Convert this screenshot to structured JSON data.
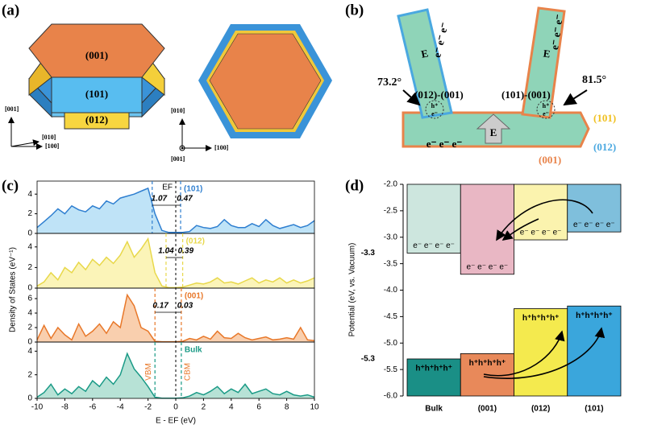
{
  "panel_labels": [
    "(a)",
    "(b)",
    "(c)",
    "(d)"
  ],
  "panel_a": {
    "facets": [
      "(001)",
      "(101)",
      "(012)"
    ],
    "axes_left": [
      "[001]",
      "[010]",
      "[100]"
    ],
    "axes_right": [
      "[010]",
      "[001]",
      "[100]"
    ]
  },
  "panel_b": {
    "angles": [
      "73.2°",
      "81.5°"
    ],
    "interfaces": [
      "(012)-(001)",
      "(101)-(001)"
    ],
    "facets": [
      "(101)",
      "(012)",
      "(001)"
    ],
    "field": "E",
    "electrons": [
      "e⁻ e⁻ e⁻",
      "e⁻ e⁻ e⁻",
      "e⁻ e⁻ e⁻"
    ],
    "pair": [
      "h⁺",
      "e⁻"
    ]
  },
  "chart_data": [
    {
      "type": "dos",
      "xlabel": "E - EF (eV)",
      "ylabel": "Density of States (eV⁻¹)",
      "ef": 0,
      "ef_label": "EF",
      "xlim": [
        -10,
        10
      ],
      "xticks": [
        -10,
        -8,
        -6,
        -4,
        -2,
        0,
        2,
        4,
        6,
        8,
        10
      ],
      "x": [
        -10,
        -9.5,
        -9,
        -8.5,
        -8,
        -7.5,
        -7,
        -6.5,
        -6,
        -5.5,
        -5,
        -4.5,
        -4,
        -3.5,
        -3,
        -2.5,
        -2,
        -1.5,
        -1,
        -0.5,
        0,
        0.5,
        1,
        1.5,
        2,
        2.5,
        3,
        3.5,
        4,
        4.5,
        5,
        5.5,
        6,
        6.5,
        7,
        7.5,
        8,
        8.5,
        9,
        9.5,
        10
      ],
      "series": [
        {
          "name": "(101)",
          "color": "#2f7fd0",
          "fill": "#bfe3f7",
          "ylim": [
            0,
            5
          ],
          "yticks": [
            0,
            2,
            4
          ],
          "vbm": -1.7,
          "cbm": 0.35,
          "gap_labels": [
            1.07,
            0.47
          ],
          "values": [
            0.6,
            1.2,
            1.8,
            2.5,
            2.0,
            2.8,
            2.4,
            2.2,
            2.8,
            2.5,
            3.3,
            3.0,
            3.6,
            3.8,
            4.0,
            4.3,
            4.6,
            2.0,
            0.3,
            0.1,
            0.1,
            0.1,
            0.2,
            0.8,
            0.6,
            0.5,
            0.7,
            1.4,
            0.8,
            0.6,
            0.6,
            1.0,
            0.7,
            1.4,
            0.8,
            0.5,
            0.7,
            0.9,
            0.6,
            0.8,
            1.3
          ]
        },
        {
          "name": "(012)",
          "color": "#e8d84a",
          "fill": "#fbf4b8",
          "ylim": [
            0,
            5
          ],
          "yticks": [
            0,
            2,
            4
          ],
          "vbm": -0.7,
          "cbm": 0.5,
          "gap_labels": [
            1.04,
            0.39
          ],
          "values": [
            0.2,
            0.6,
            1.5,
            0.8,
            2.0,
            1.5,
            2.5,
            1.8,
            2.8,
            2.2,
            3.0,
            2.4,
            3.2,
            4.5,
            3.0,
            3.8,
            4.8,
            1.5,
            0.2,
            0.05,
            0.05,
            0.1,
            0.3,
            0.5,
            0.4,
            0.6,
            1.0,
            0.5,
            0.6,
            0.4,
            0.7,
            1.0,
            0.5,
            0.8,
            0.6,
            1.0,
            0.5,
            0.8,
            0.5,
            0.7,
            1.0
          ]
        },
        {
          "name": "(001)",
          "color": "#e8782a",
          "fill": "#f9cfae",
          "ylim": [
            0,
            7
          ],
          "yticks": [
            0,
            2,
            4,
            6
          ],
          "vbm": -1.5,
          "cbm": 0.4,
          "gap_labels": [
            0.17,
            0.03
          ],
          "values": [
            0.3,
            2.3,
            0.5,
            2.0,
            1.0,
            0.3,
            2.5,
            0.8,
            1.5,
            2.5,
            1.2,
            2.8,
            2.0,
            6.5,
            5.0,
            2.0,
            1.5,
            0.1,
            0.05,
            0.05,
            0.05,
            0.1,
            0.5,
            0.3,
            0.8,
            0.4,
            1.5,
            0.6,
            0.5,
            1.2,
            0.6,
            0.3,
            0.5,
            0.7,
            0.3,
            0.4,
            0.6,
            0.4,
            2.0,
            0.3,
            0.2
          ]
        },
        {
          "name": "Bulk",
          "color": "#1a9a86",
          "fill": "#b7e2d6",
          "ylim": [
            0,
            4.5
          ],
          "yticks": [
            0,
            2,
            4
          ],
          "vbm": -1.5,
          "cbm": 0.4,
          "values": [
            0.1,
            0.5,
            1.2,
            0.3,
            0.8,
            0.4,
            1.0,
            0.6,
            1.5,
            1.0,
            1.8,
            1.2,
            2.0,
            3.8,
            2.5,
            1.8,
            1.0,
            0.1,
            0.02,
            0.02,
            0.02,
            0.05,
            0.2,
            0.5,
            0.3,
            0.6,
            1.0,
            0.4,
            0.8,
            0.5,
            1.2,
            0.4,
            0.6,
            0.8,
            0.4,
            0.3,
            0.6,
            0.3,
            0.2,
            0.3,
            0.1
          ]
        }
      ],
      "annotations": [
        {
          "text": "VBM",
          "x": -1.5,
          "color": "#e8782a"
        },
        {
          "text": "CBM",
          "x": 0.4,
          "color": "#e8782a"
        }
      ]
    },
    {
      "type": "band",
      "ylabel": "Potential (eV, vs. Vacuum)",
      "categories": [
        "Bulk",
        "(001)",
        "(012)",
        "(101)"
      ],
      "cb_bottom": [
        -3.3,
        -3.7,
        -3.05,
        -2.9
      ],
      "vb_top": [
        -5.3,
        -5.2,
        -4.35,
        -4.3
      ],
      "cb_colors": [
        "#cde6de",
        "#e9b7c4",
        "#fbf3ae",
        "#7fbfdc"
      ],
      "vb_colors": [
        "#1a8f86",
        "#e8895a",
        "#f4ea4e",
        "#3aa6dc"
      ],
      "ylim": [
        -6,
        -2
      ],
      "yticks": [
        {
          "value": -2,
          "label": "-2.0"
        },
        {
          "value": -2.5,
          "label": "-2.5"
        },
        {
          "value": -3,
          "label": "-3.0"
        },
        {
          "value": -3.5,
          "label": "-3.5"
        },
        {
          "value": -4,
          "label": "-4.0"
        },
        {
          "value": -4.5,
          "label": "-4.5"
        },
        {
          "value": -5,
          "label": "-5.0"
        },
        {
          "value": -5.5,
          "label": "-5.5"
        },
        {
          "value": -6,
          "label": "-6.0"
        }
      ],
      "level_labels": [
        -3.3,
        -5.3
      ],
      "electrons": [
        "e⁻ e⁻ e⁻ e⁻",
        "e⁻ e⁻ e⁻ e⁻",
        "e⁻ e⁻ e⁻ e⁻",
        "e⁻ e⁻ e⁻ e⁻"
      ],
      "holes": [
        "h⁺h⁺h⁺h⁺",
        "h⁺h⁺h⁺h⁺",
        "h⁺h⁺h⁺h⁺",
        "h⁺h⁺h⁺h⁺"
      ]
    }
  ]
}
